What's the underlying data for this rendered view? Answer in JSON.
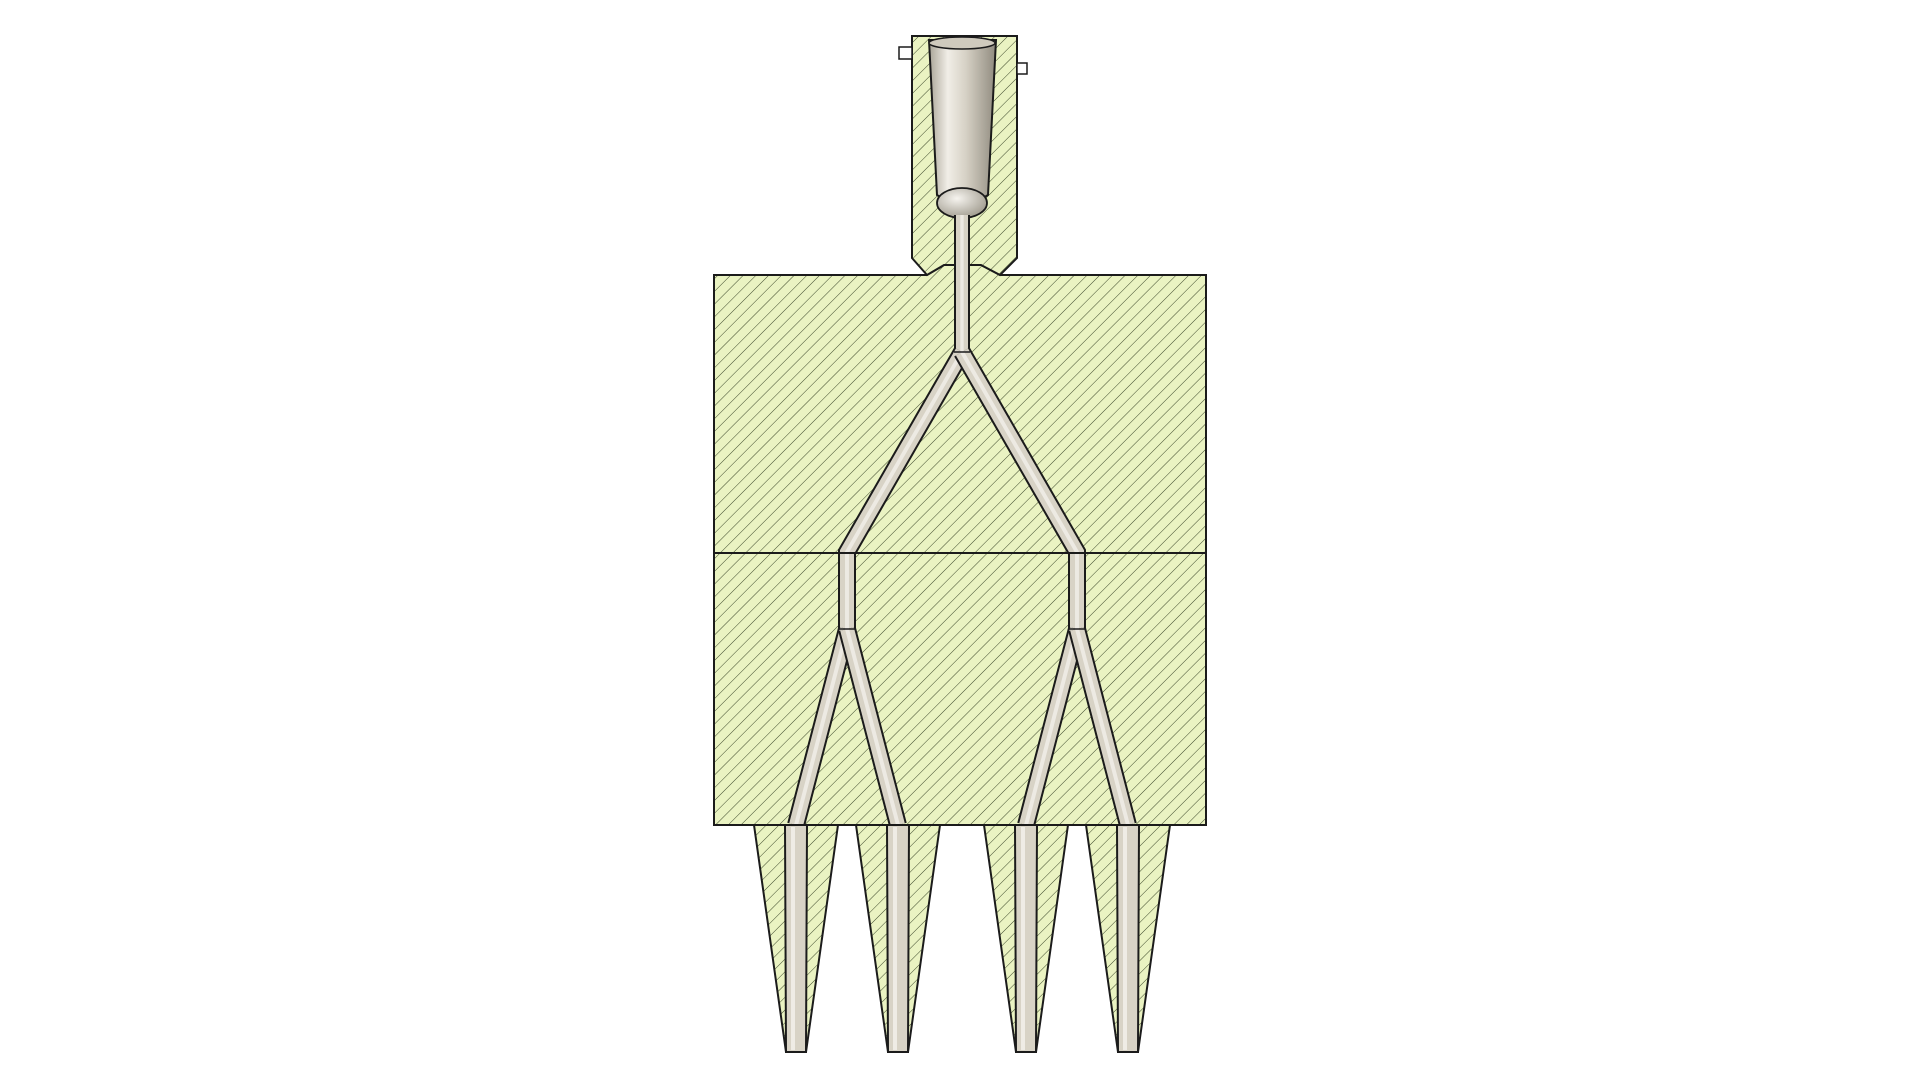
{
  "view": {
    "kind": "cross-section",
    "background_color": "#ffffff"
  },
  "colors": {
    "section_fill": "#eaf3c2",
    "hatch_line": "#3e4a2c",
    "outline": "#1b1b1b",
    "channel_fill": "#d8d3c6",
    "channel_highlight": "#efece5",
    "channel_shadow": "#9f9a8d"
  },
  "components": {
    "inlet_bushing": {
      "icon": "inlet-bushing-icon"
    },
    "upper_plate": {
      "icon": "manifold-plate-icon"
    },
    "lower_plate": {
      "icon": "manifold-plate-icon"
    },
    "nozzles": {
      "count": 4,
      "icon": "nozzle-tip-icon"
    },
    "runner_network": {
      "icon": "flow-channel-icon",
      "main_splits": 1,
      "secondary_splits": 2,
      "outlets": 4
    }
  }
}
